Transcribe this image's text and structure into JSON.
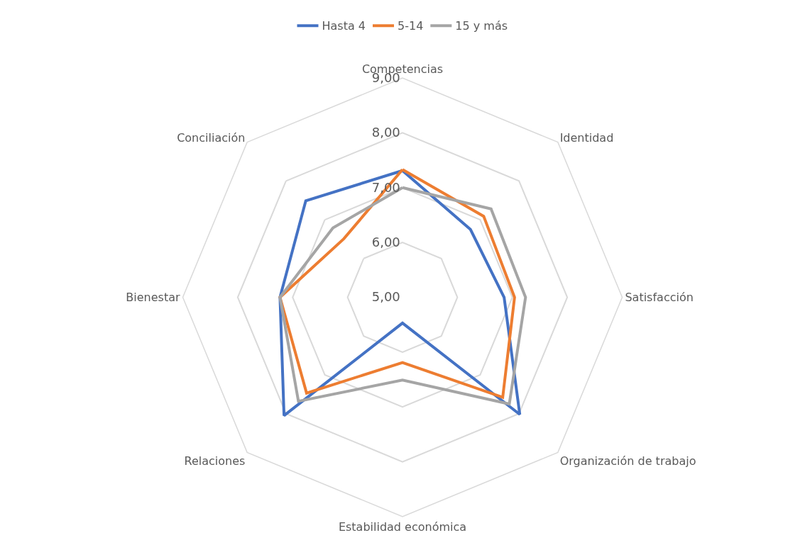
{
  "chart_data": {
    "type": "radar",
    "categories": [
      "Competencias",
      "Identidad",
      "Satisfacción",
      "Organización de trabajo",
      "Estabilidad económica",
      "Relaciones",
      "Bienestar",
      "Conciliación"
    ],
    "series": [
      {
        "name": "Hasta 4",
        "color": "#4472c4",
        "values": [
          7.31,
          6.75,
          6.85,
          8.02,
          5.47,
          8.05,
          7.23,
          7.49
        ]
      },
      {
        "name": "5-14",
        "color": "#ed7d31",
        "values": [
          7.33,
          7.09,
          7.04,
          7.58,
          6.19,
          7.47,
          7.23,
          6.51
        ]
      },
      {
        "name": "15 y más",
        "color": "#a5a5a5",
        "values": [
          7.0,
          7.28,
          7.24,
          7.75,
          6.51,
          7.68,
          7.23,
          6.79
        ]
      }
    ],
    "ylim": [
      5,
      9
    ],
    "yticks": [
      {
        "value": 5,
        "label": "5,00"
      },
      {
        "value": 6,
        "label": "6,00"
      },
      {
        "value": 7,
        "label": "7,00"
      },
      {
        "value": 8,
        "label": "8,00"
      },
      {
        "value": 9,
        "label": "9,00"
      }
    ],
    "legend": "top",
    "grid": true,
    "marker": "none",
    "line_style": "solid"
  }
}
